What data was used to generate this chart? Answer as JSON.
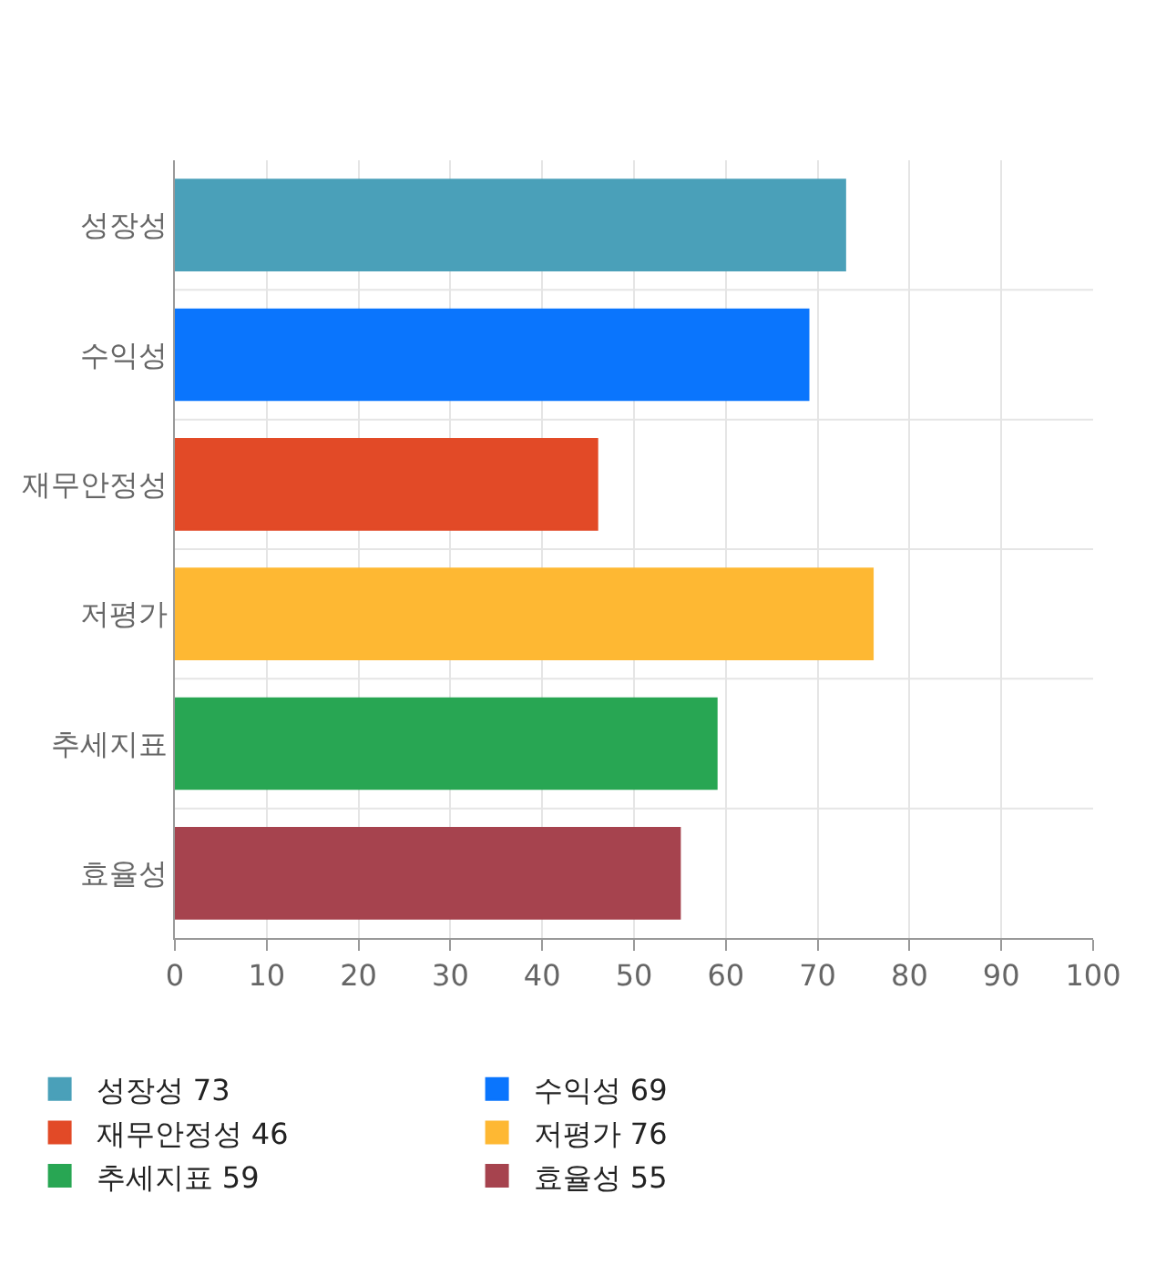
{
  "chart_data": {
    "type": "bar",
    "orientation": "horizontal",
    "categories": [
      "성장성",
      "수익성",
      "재무안정성",
      "저평가",
      "추세지표",
      "효율성"
    ],
    "series": [
      {
        "name": "성장성 73",
        "color": "#4aa0b9",
        "values": [
          73,
          null,
          null,
          null,
          null,
          null
        ]
      },
      {
        "name": "수익성 69",
        "color": "#0a75fd",
        "values": [
          null,
          69,
          null,
          null,
          null,
          null
        ]
      },
      {
        "name": "재무안정성 46",
        "color": "#e24a27",
        "values": [
          null,
          null,
          46,
          null,
          null,
          null
        ]
      },
      {
        "name": "저평가 76",
        "color": "#feb833",
        "values": [
          null,
          null,
          null,
          76,
          null,
          null
        ]
      },
      {
        "name": "추세지표 59",
        "color": "#28a653",
        "values": [
          null,
          null,
          null,
          null,
          59,
          null
        ]
      },
      {
        "name": "효율성 55",
        "color": "#a6434e",
        "values": [
          null,
          null,
          null,
          null,
          null,
          55
        ]
      }
    ],
    "xlim": [
      0,
      100
    ],
    "xticks": [
      0,
      10,
      20,
      30,
      40,
      50,
      60,
      70,
      80,
      90,
      100
    ],
    "grid": true,
    "legend": "bottom"
  }
}
